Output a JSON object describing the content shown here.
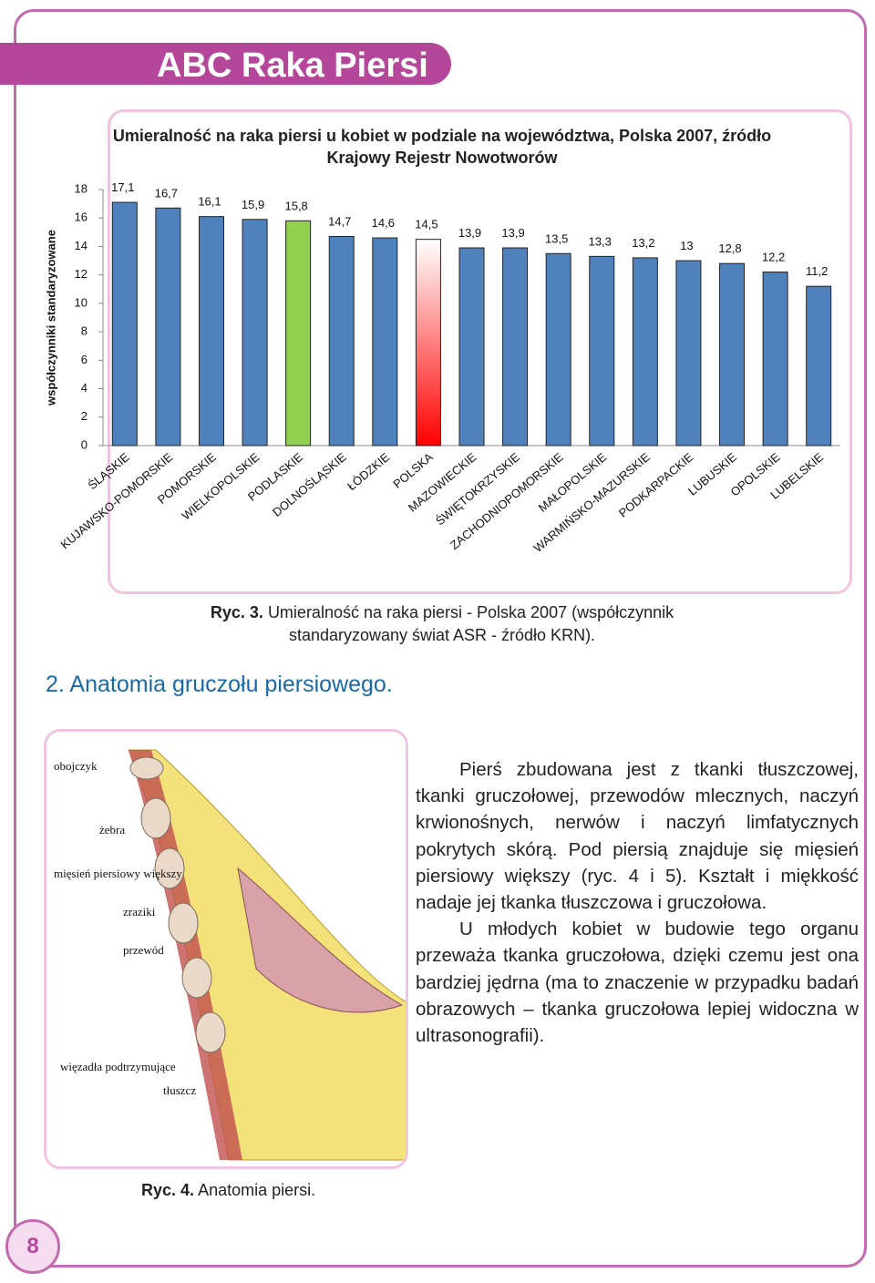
{
  "header": {
    "title": "ABC Raka Piersi"
  },
  "chart_data": {
    "type": "bar",
    "title": "Umieralność na raka piersi u kobiet w podziale na województwa, Polska 2007, źródło Krajowy Rejestr Nowotworów",
    "y_label": "współczynniki standaryzowane",
    "categories": [
      "ŚLĄSKIE",
      "KUJAWSKO-POMORSKIE",
      "POMORSKIE",
      "WIELKOPOLSKIE",
      "PODLASKIE",
      "DOLNOŚLĄSKIE",
      "ŁÓDZKIE",
      "POLSKA",
      "MAZOWIECKIE",
      "ŚWIĘTOKRZYSKIE",
      "ZACHODNIOPOMORSKIE",
      "MAŁOPOLSKIE",
      "WARMIŃSKO-MAZURSKIE",
      "PODKARPACKIE",
      "LUBUSKIE",
      "OPOLSKIE",
      "LUBELSKIE"
    ],
    "values": [
      17.1,
      16.7,
      16.1,
      15.9,
      15.8,
      14.7,
      14.6,
      14.5,
      13.9,
      13.9,
      13.5,
      13.3,
      13.2,
      13,
      12.8,
      12.2,
      11.2
    ],
    "value_labels": [
      "17,1",
      "16,7",
      "16,1",
      "15,9",
      "15,8",
      "14,7",
      "14,6",
      "14,5",
      "13,9",
      "13,9",
      "13,5",
      "13,3",
      "13,2",
      "13",
      "12,8",
      "12,2",
      "11,2"
    ],
    "colors": [
      "#4f81bd",
      "#4f81bd",
      "#4f81bd",
      "#4f81bd",
      "#92d050",
      "#4f81bd",
      "#4f81bd",
      [
        "#ffffff",
        "#ff0000"
      ],
      "#4f81bd",
      "#4f81bd",
      "#4f81bd",
      "#4f81bd",
      "#4f81bd",
      "#4f81bd",
      "#4f81bd",
      "#4f81bd",
      "#4f81bd"
    ],
    "ylim": [
      0,
      18
    ],
    "yticks": [
      0,
      2,
      4,
      6,
      8,
      10,
      12,
      14,
      16,
      18
    ]
  },
  "chart_caption": {
    "label": "Ryc. 3.",
    "text": "Umieralność na raka piersi - Polska 2007 (współczynnik standaryzowany świat ASR - źródło KRN)."
  },
  "section": {
    "heading": "2. Anatomia gruczołu piersiowego."
  },
  "illustration": {
    "labels": [
      "obojczyk",
      "żebra",
      "mięsień piersiowy większy",
      "zraziki",
      "przewód",
      "więzadła podtrzymujące",
      "tłuszcz"
    ]
  },
  "paragraphs": [
    "Pierś zbudowana jest z tkanki tłuszczowej, tkanki gruczołowej, przewodów mlecznych, naczyń krwionośnych, nerwów i naczyń limfatycznych pokrytych skórą. Pod piersią znajduje się mięsień piersiowy większy (ryc. 4 i 5). Kształt i miękkość nadaje jej tkanka tłuszczowa i gruczołowa.",
    "U młodych kobiet w budowie tego organu przeważa tkanka gruczołowa, dzięki czemu jest ona bardziej jędrna (ma to znaczenie w przypadku badań obrazowych – tkanka gruczołowa lepiej widoczna w ultrasonografii)."
  ],
  "figure_caption": {
    "label": "Ryc. 4.",
    "text": "Anatomia piersi."
  },
  "page_number": 8
}
